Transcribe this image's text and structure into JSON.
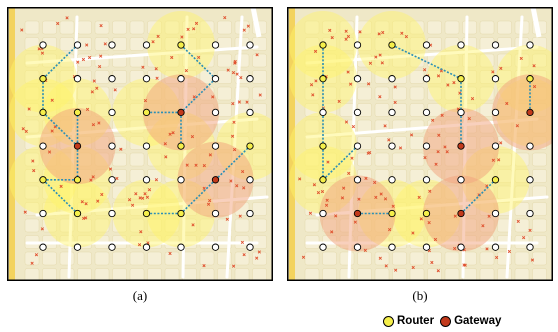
{
  "captions": {
    "a": "(a)",
    "b": "(b)"
  },
  "legend": {
    "router_label": "Router",
    "gateway_label": "Gateway"
  },
  "colors": {
    "map_bg": "#efe8c7",
    "block": "#f5efd6",
    "street": "#ffffff",
    "main_road": "#f3d35e",
    "coverage_router": "#fff36a",
    "coverage_gateway": "#f2a27b",
    "router": "#f5ef4a",
    "gateway": "#c23a1c",
    "node": "#ffffff",
    "link": "#2a8fb6",
    "client": "#e0502e",
    "frame": "#000000"
  },
  "grid": {
    "cols": 7,
    "rows": 7
  },
  "panels": [
    {
      "id": "a",
      "routers": [
        [
          4,
          0
        ],
        [
          0,
          1
        ],
        [
          0,
          2
        ],
        [
          1,
          2
        ],
        [
          3,
          2
        ],
        [
          4,
          3
        ],
        [
          0,
          4
        ],
        [
          1,
          4
        ],
        [
          1,
          5
        ],
        [
          3,
          5
        ],
        [
          4,
          5
        ],
        [
          6,
          3
        ]
      ],
      "gateways": [
        [
          1,
          3
        ],
        [
          4,
          2
        ],
        [
          5,
          4
        ]
      ],
      "links": [
        [
          [
            0,
            1
          ],
          [
            0,
            2
          ]
        ],
        [
          [
            0,
            2
          ],
          [
            1,
            3
          ]
        ],
        [
          [
            1,
            3
          ],
          [
            1,
            4
          ]
        ],
        [
          [
            1,
            4
          ],
          [
            0,
            4
          ]
        ],
        [
          [
            0,
            4
          ],
          [
            1,
            5
          ]
        ],
        [
          [
            1,
            3
          ],
          [
            1,
            2
          ]
        ],
        [
          [
            0,
            1
          ],
          [
            1,
            0
          ]
        ],
        [
          [
            4,
            0
          ],
          [
            5,
            1
          ]
        ],
        [
          [
            5,
            1
          ],
          [
            4,
            2
          ]
        ],
        [
          [
            4,
            2
          ],
          [
            3,
            2
          ]
        ],
        [
          [
            4,
            2
          ],
          [
            4,
            3
          ]
        ],
        [
          [
            5,
            4
          ],
          [
            6,
            3
          ]
        ],
        [
          [
            5,
            4
          ],
          [
            4,
            5
          ]
        ],
        [
          [
            4,
            5
          ],
          [
            3,
            5
          ]
        ]
      ]
    },
    {
      "id": "b",
      "routers": [
        [
          0,
          0
        ],
        [
          0,
          1
        ],
        [
          0,
          3
        ],
        [
          0,
          4
        ],
        [
          2,
          0
        ],
        [
          4,
          1
        ],
        [
          3,
          5
        ],
        [
          6,
          2
        ],
        [
          6,
          1
        ],
        [
          5,
          4
        ],
        [
          2,
          5
        ]
      ],
      "gateways": [
        [
          4,
          3
        ],
        [
          6,
          2
        ],
        [
          1,
          5
        ],
        [
          4,
          5
        ]
      ],
      "links": [
        [
          [
            0,
            0
          ],
          [
            0,
            1
          ]
        ],
        [
          [
            0,
            1
          ],
          [
            0,
            2
          ]
        ],
        [
          [
            0,
            2
          ],
          [
            0,
            3
          ]
        ],
        [
          [
            0,
            3
          ],
          [
            0,
            4
          ]
        ],
        [
          [
            0,
            4
          ],
          [
            1,
            3
          ]
        ],
        [
          [
            2,
            0
          ],
          [
            4,
            1
          ]
        ],
        [
          [
            4,
            1
          ],
          [
            4,
            2
          ]
        ],
        [
          [
            4,
            2
          ],
          [
            4,
            3
          ]
        ],
        [
          [
            1,
            5
          ],
          [
            2,
            5
          ]
        ],
        [
          [
            4,
            5
          ],
          [
            5,
            4
          ]
        ],
        [
          [
            6,
            2
          ],
          [
            6,
            1
          ]
        ]
      ]
    }
  ]
}
